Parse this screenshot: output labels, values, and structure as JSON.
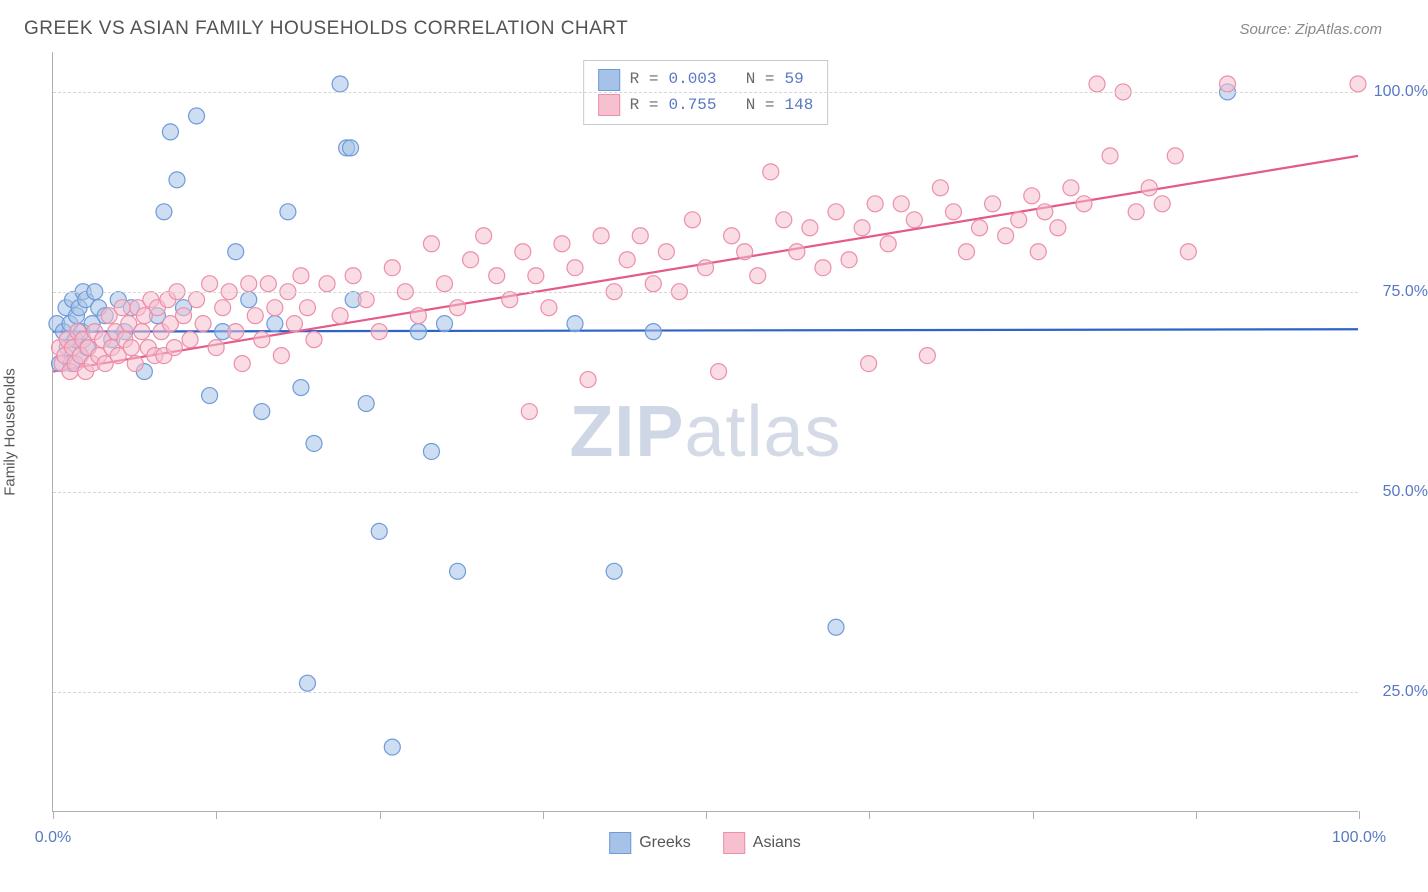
{
  "header": {
    "title": "GREEK VS ASIAN FAMILY HOUSEHOLDS CORRELATION CHART",
    "source": "Source: ZipAtlas.com"
  },
  "chart": {
    "type": "scatter",
    "y_axis_title": "Family Households",
    "watermark": {
      "bold": "ZIP",
      "light": "atlas"
    },
    "xlim": [
      0,
      100
    ],
    "ylim": [
      10,
      105
    ],
    "x_ticks": [
      0,
      12.5,
      25,
      37.5,
      50,
      62.5,
      75,
      87.5,
      100
    ],
    "x_tick_labels": {
      "0": "0.0%",
      "100": "100.0%"
    },
    "y_gridlines": [
      25,
      50,
      75,
      100
    ],
    "y_tick_labels": {
      "25": "25.0%",
      "50": "50.0%",
      "75": "75.0%",
      "100": "100.0%"
    },
    "grid_color": "#d6d6d6",
    "axis_color": "#b0b0b0",
    "label_color": "#5878c4",
    "background_color": "#ffffff",
    "marker_radius": 8,
    "marker_opacity": 0.55,
    "line_width": 2.2,
    "series": [
      {
        "name": "Greeks",
        "color_fill": "#a6c2e8",
        "color_stroke": "#6f9bd8",
        "line_color": "#2d63c8",
        "R": "0.003",
        "N": "59",
        "regression": {
          "x1": 0,
          "y1": 70,
          "x2": 100,
          "y2": 70.3
        },
        "points": [
          [
            0.3,
            71
          ],
          [
            0.5,
            66
          ],
          [
            0.8,
            70
          ],
          [
            1.0,
            73
          ],
          [
            1.1,
            68
          ],
          [
            1.3,
            71
          ],
          [
            1.4,
            66
          ],
          [
            1.5,
            74
          ],
          [
            1.7,
            69
          ],
          [
            1.8,
            72
          ],
          [
            2.0,
            73
          ],
          [
            2.1,
            67
          ],
          [
            2.2,
            70
          ],
          [
            2.3,
            75
          ],
          [
            2.5,
            74
          ],
          [
            2.6,
            68
          ],
          [
            3.0,
            71
          ],
          [
            3.2,
            75
          ],
          [
            3.5,
            73
          ],
          [
            4.0,
            72
          ],
          [
            4.5,
            69
          ],
          [
            5.0,
            74
          ],
          [
            5.5,
            70
          ],
          [
            6.0,
            73
          ],
          [
            7.0,
            65
          ],
          [
            8.0,
            72
          ],
          [
            8.5,
            85
          ],
          [
            9.0,
            95
          ],
          [
            9.5,
            89
          ],
          [
            10.0,
            73
          ],
          [
            11.0,
            97
          ],
          [
            12.0,
            62
          ],
          [
            13.0,
            70
          ],
          [
            14.0,
            80
          ],
          [
            15.0,
            74
          ],
          [
            16.0,
            60
          ],
          [
            17.0,
            71
          ],
          [
            18.0,
            85
          ],
          [
            19.0,
            63
          ],
          [
            19.5,
            26
          ],
          [
            20.0,
            56
          ],
          [
            22.0,
            101
          ],
          [
            22.5,
            93
          ],
          [
            22.8,
            93
          ],
          [
            23.0,
            74
          ],
          [
            24.0,
            61
          ],
          [
            25.0,
            45
          ],
          [
            26.0,
            18
          ],
          [
            28.0,
            70
          ],
          [
            29.0,
            55
          ],
          [
            30.0,
            71
          ],
          [
            31.0,
            40
          ],
          [
            40.0,
            71
          ],
          [
            43.0,
            40
          ],
          [
            46.0,
            70
          ],
          [
            60.0,
            33
          ],
          [
            90.0,
            100
          ]
        ]
      },
      {
        "name": "Asians",
        "color_fill": "#f6c0cf",
        "color_stroke": "#ec8fa9",
        "line_color": "#e45a88",
        "R": "0.755",
        "N": "148",
        "regression": {
          "x1": 0,
          "y1": 65,
          "x2": 100,
          "y2": 92
        },
        "points": [
          [
            0.5,
            68
          ],
          [
            0.7,
            66
          ],
          [
            0.9,
            67
          ],
          [
            1.1,
            69
          ],
          [
            1.3,
            65
          ],
          [
            1.5,
            68
          ],
          [
            1.7,
            66
          ],
          [
            1.9,
            70
          ],
          [
            2.1,
            67
          ],
          [
            2.3,
            69
          ],
          [
            2.5,
            65
          ],
          [
            2.7,
            68
          ],
          [
            3.0,
            66
          ],
          [
            3.2,
            70
          ],
          [
            3.5,
            67
          ],
          [
            3.8,
            69
          ],
          [
            4.0,
            66
          ],
          [
            4.3,
            72
          ],
          [
            4.5,
            68
          ],
          [
            4.8,
            70
          ],
          [
            5.0,
            67
          ],
          [
            5.3,
            73
          ],
          [
            5.5,
            69
          ],
          [
            5.8,
            71
          ],
          [
            6.0,
            68
          ],
          [
            6.3,
            66
          ],
          [
            6.5,
            73
          ],
          [
            6.8,
            70
          ],
          [
            7.0,
            72
          ],
          [
            7.3,
            68
          ],
          [
            7.5,
            74
          ],
          [
            7.8,
            67
          ],
          [
            8.0,
            73
          ],
          [
            8.3,
            70
          ],
          [
            8.5,
            67
          ],
          [
            8.8,
            74
          ],
          [
            9.0,
            71
          ],
          [
            9.3,
            68
          ],
          [
            9.5,
            75
          ],
          [
            10.0,
            72
          ],
          [
            10.5,
            69
          ],
          [
            11.0,
            74
          ],
          [
            11.5,
            71
          ],
          [
            12.0,
            76
          ],
          [
            12.5,
            68
          ],
          [
            13.0,
            73
          ],
          [
            13.5,
            75
          ],
          [
            14.0,
            70
          ],
          [
            14.5,
            66
          ],
          [
            15.0,
            76
          ],
          [
            15.5,
            72
          ],
          [
            16.0,
            69
          ],
          [
            16.5,
            76
          ],
          [
            17.0,
            73
          ],
          [
            17.5,
            67
          ],
          [
            18.0,
            75
          ],
          [
            18.5,
            71
          ],
          [
            19.0,
            77
          ],
          [
            19.5,
            73
          ],
          [
            20.0,
            69
          ],
          [
            21.0,
            76
          ],
          [
            22.0,
            72
          ],
          [
            23.0,
            77
          ],
          [
            24.0,
            74
          ],
          [
            25.0,
            70
          ],
          [
            26.0,
            78
          ],
          [
            27.0,
            75
          ],
          [
            28.0,
            72
          ],
          [
            29.0,
            81
          ],
          [
            30.0,
            76
          ],
          [
            31.0,
            73
          ],
          [
            32.0,
            79
          ],
          [
            33.0,
            82
          ],
          [
            34.0,
            77
          ],
          [
            35.0,
            74
          ],
          [
            36.0,
            80
          ],
          [
            36.5,
            60
          ],
          [
            37.0,
            77
          ],
          [
            38.0,
            73
          ],
          [
            39.0,
            81
          ],
          [
            40.0,
            78
          ],
          [
            41.0,
            64
          ],
          [
            42.0,
            82
          ],
          [
            43.0,
            75
          ],
          [
            44.0,
            79
          ],
          [
            45.0,
            82
          ],
          [
            46.0,
            76
          ],
          [
            47.0,
            80
          ],
          [
            48.0,
            75
          ],
          [
            49.0,
            84
          ],
          [
            50.0,
            78
          ],
          [
            51.0,
            65
          ],
          [
            52.0,
            82
          ],
          [
            53.0,
            80
          ],
          [
            54.0,
            77
          ],
          [
            55.0,
            90
          ],
          [
            56.0,
            84
          ],
          [
            57.0,
            80
          ],
          [
            58.0,
            83
          ],
          [
            59.0,
            78
          ],
          [
            60.0,
            85
          ],
          [
            61.0,
            79
          ],
          [
            62.0,
            83
          ],
          [
            62.5,
            66
          ],
          [
            63.0,
            86
          ],
          [
            64.0,
            81
          ],
          [
            65.0,
            86
          ],
          [
            66.0,
            84
          ],
          [
            67.0,
            67
          ],
          [
            68.0,
            88
          ],
          [
            69.0,
            85
          ],
          [
            70.0,
            80
          ],
          [
            71.0,
            83
          ],
          [
            72.0,
            86
          ],
          [
            73.0,
            82
          ],
          [
            74.0,
            84
          ],
          [
            75.0,
            87
          ],
          [
            75.5,
            80
          ],
          [
            76.0,
            85
          ],
          [
            77.0,
            83
          ],
          [
            78.0,
            88
          ],
          [
            79.0,
            86
          ],
          [
            80.0,
            101
          ],
          [
            81.0,
            92
          ],
          [
            82.0,
            100
          ],
          [
            83.0,
            85
          ],
          [
            84.0,
            88
          ],
          [
            85.0,
            86
          ],
          [
            86.0,
            92
          ],
          [
            87.0,
            80
          ],
          [
            90.0,
            101
          ],
          [
            100.0,
            101
          ]
        ]
      }
    ],
    "legend_bottom": [
      {
        "label": "Greeks",
        "fill": "#a6c2e8",
        "stroke": "#6f9bd8"
      },
      {
        "label": "Asians",
        "fill": "#f6c0cf",
        "stroke": "#ec8fa9"
      }
    ]
  }
}
